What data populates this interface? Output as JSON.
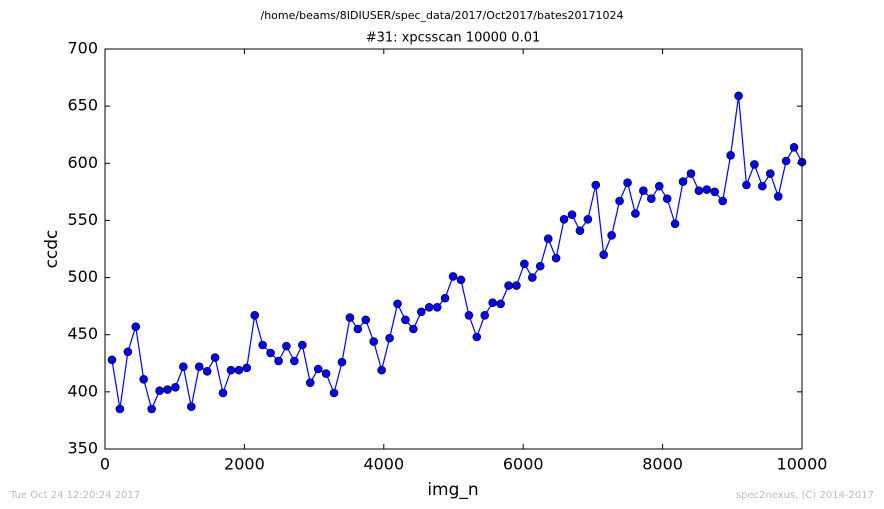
{
  "chart_data": {
    "type": "line",
    "suptitle": "/home/beams/8IDIUSER/spec_data/2017/Oct2017/bates20171024",
    "title": "#31: xpcsscan 10000 0.01",
    "x_label": "img_n",
    "y_label": "ccdc",
    "footer_left": "Tue Oct 24 12:20:24 2017",
    "footer_right": "spec2nexus, (C) 2014-2017",
    "x": [
      100,
      214,
      328,
      441,
      555,
      669,
      783,
      897,
      1010,
      1124,
      1238,
      1352,
      1466,
      1579,
      1693,
      1807,
      1921,
      2034,
      2148,
      2262,
      2376,
      2490,
      2603,
      2717,
      2831,
      2945,
      3059,
      3172,
      3286,
      3400,
      3514,
      3628,
      3741,
      3855,
      3969,
      4083,
      4197,
      4310,
      4424,
      4538,
      4652,
      4766,
      4879,
      4993,
      5107,
      5221,
      5334,
      5448,
      5562,
      5676,
      5790,
      5903,
      6017,
      6131,
      6245,
      6359,
      6472,
      6586,
      6700,
      6814,
      6928,
      7041,
      7155,
      7269,
      7383,
      7497,
      7610,
      7724,
      7838,
      7952,
      8066,
      8179,
      8293,
      8407,
      8521,
      8634,
      8748,
      8862,
      8976,
      9090,
      9203,
      9317,
      9431,
      9545,
      9659,
      9772,
      9886,
      10000
    ],
    "series": [
      {
        "name": "ccdc",
        "color": "#0000ff",
        "values": [
          428,
          385,
          435,
          457,
          411,
          385,
          401,
          402,
          404,
          422,
          387,
          422,
          418,
          430,
          399,
          419,
          419,
          421,
          467,
          441,
          434,
          427,
          440,
          427,
          441,
          408,
          420,
          416,
          399,
          426,
          465,
          455,
          463,
          444,
          419,
          447,
          477,
          463,
          455,
          470,
          474,
          474,
          482,
          501,
          498,
          467,
          448,
          467,
          478,
          477,
          493,
          493,
          512,
          500,
          510,
          534,
          517,
          551,
          555,
          541,
          551,
          581,
          520,
          537,
          567,
          583,
          556,
          576,
          569,
          580,
          569,
          547,
          584,
          591,
          576,
          577,
          575,
          567,
          607,
          659,
          581,
          599,
          580,
          591,
          571,
          602,
          614,
          601
        ]
      }
    ],
    "xlim": [
      0,
      10000
    ],
    "xticks": [
      0,
      2000,
      4000,
      6000,
      8000,
      10000
    ],
    "ylim": [
      350,
      700
    ],
    "yticks": [
      350,
      400,
      450,
      500,
      550,
      600,
      650,
      700
    ]
  }
}
